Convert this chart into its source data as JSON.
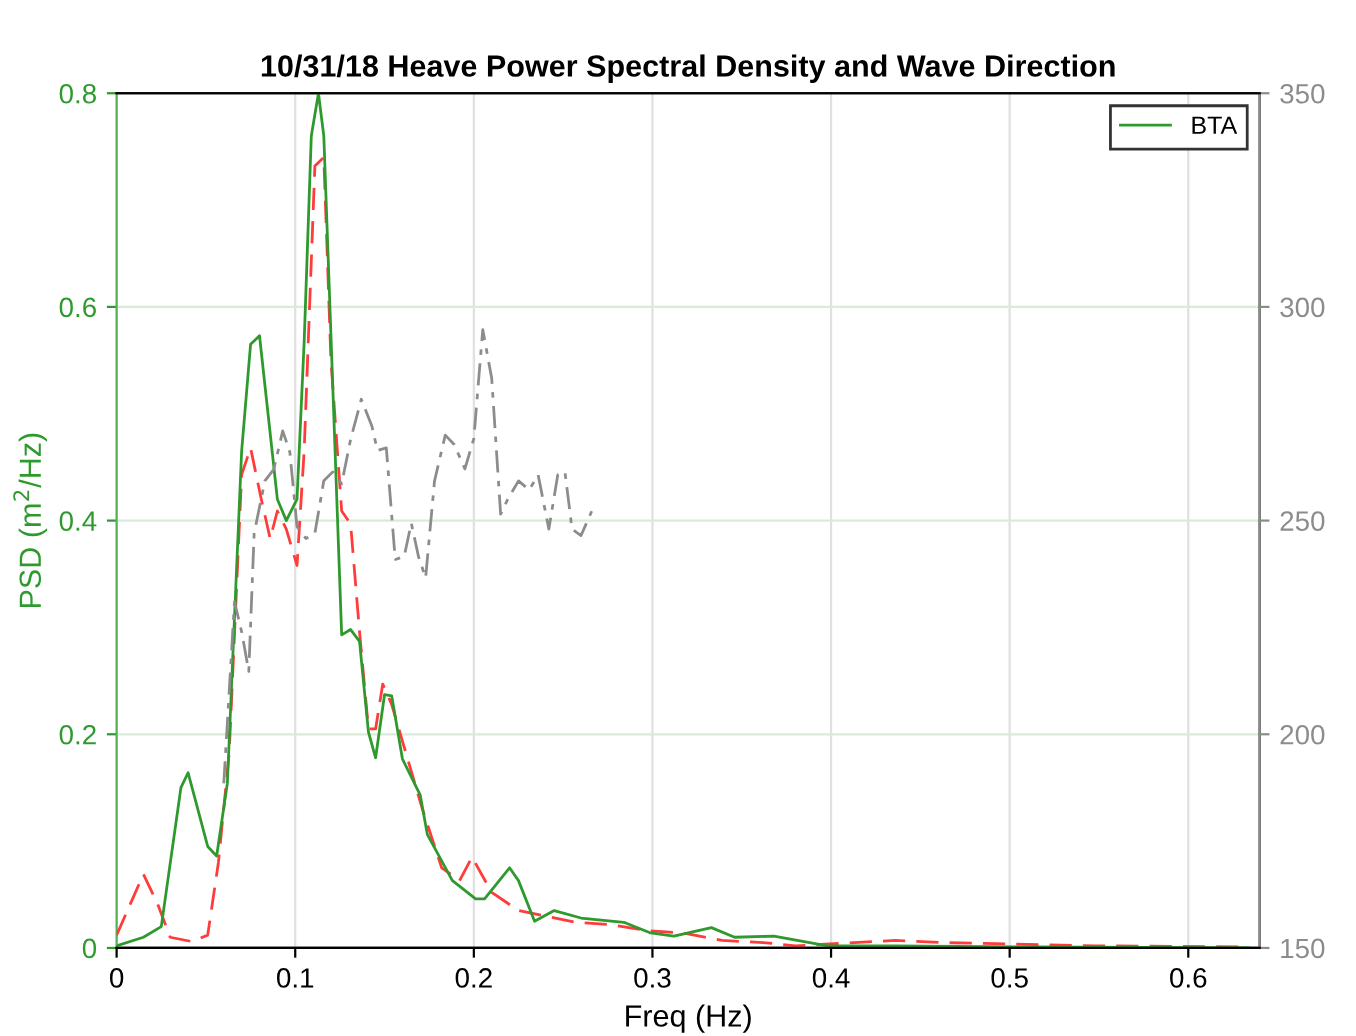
{
  "chart_data": {
    "type": "line",
    "title": "10/31/18 Heave Power Spectral Density and Wave Direction",
    "xlabel": "Freq (Hz)",
    "ylabel": "PSD (m$^{2}$/Hz)",
    "xlim": [
      0,
      0.64
    ],
    "xticks": [
      0,
      0.1,
      0.2,
      0.3,
      0.4,
      0.5,
      0.6
    ],
    "ylim": [
      0,
      0.8
    ],
    "yticks": [
      0,
      0.2,
      0.4,
      0.6,
      0.8
    ],
    "y2lim": [
      150,
      350
    ],
    "y2ticks": [
      150,
      200,
      250,
      300,
      350
    ],
    "grid": true,
    "legend": "top right",
    "series": [
      {
        "color": "#ff3b3b",
        "line_style": "dashed",
        "x": [
          0,
          0.015,
          0.023,
          0.03,
          0.042,
          0.051,
          0.057,
          0.063,
          0.07,
          0.075,
          0.081,
          0.086,
          0.09,
          0.095,
          0.101,
          0.105,
          0.111,
          0.116,
          0.12,
          0.126,
          0.131,
          0.136,
          0.141,
          0.145,
          0.149,
          0.154,
          0.161,
          0.171,
          0.182,
          0.192,
          0.199,
          0.21,
          0.225,
          0.257,
          0.276,
          0.298,
          0.317,
          0.339,
          0.362,
          0.38,
          0.436,
          0.462,
          0.492,
          0.548,
          0.634
        ],
        "values": [
          0.012,
          0.069,
          0.041,
          0.01,
          0.006,
          0.012,
          0.08,
          0.182,
          0.443,
          0.468,
          0.42,
          0.383,
          0.409,
          0.392,
          0.358,
          0.465,
          0.732,
          0.74,
          0.55,
          0.409,
          0.397,
          0.296,
          0.205,
          0.205,
          0.247,
          0.228,
          0.188,
          0.131,
          0.075,
          0.063,
          0.085,
          0.052,
          0.035,
          0.024,
          0.022,
          0.016,
          0.014,
          0.007,
          0.005,
          0.002,
          0.007,
          0.005,
          0.004,
          0.002,
          0.001
        ]
      },
      {
        "name": "BTA",
        "color": "#2e9a2e",
        "line_style": "solid",
        "x": [
          0,
          0.015,
          0.025,
          0.036,
          0.04,
          0.051,
          0.056,
          0.062,
          0.07,
          0.075,
          0.08,
          0.09,
          0.095,
          0.101,
          0.105,
          0.109,
          0.113,
          0.116,
          0.126,
          0.131,
          0.136,
          0.141,
          0.145,
          0.15,
          0.154,
          0.16,
          0.17,
          0.174,
          0.188,
          0.201,
          0.206,
          0.22,
          0.225,
          0.234,
          0.245,
          0.26,
          0.284,
          0.299,
          0.312,
          0.333,
          0.346,
          0.368,
          0.398,
          0.436,
          0.511,
          0.634
        ],
        "values": [
          0.002,
          0.01,
          0.02,
          0.15,
          0.164,
          0.095,
          0.086,
          0.154,
          0.465,
          0.565,
          0.573,
          0.42,
          0.4,
          0.42,
          0.567,
          0.76,
          0.8,
          0.76,
          0.293,
          0.298,
          0.287,
          0.202,
          0.178,
          0.237,
          0.236,
          0.177,
          0.143,
          0.106,
          0.063,
          0.046,
          0.046,
          0.075,
          0.063,
          0.025,
          0.035,
          0.028,
          0.024,
          0.014,
          0.011,
          0.019,
          0.01,
          0.011,
          0.002,
          0.002,
          0.001,
          0.0
        ]
      },
      {
        "axis": "y2",
        "color": "#8c8c8c",
        "line_style": "dashdot",
        "x": [
          0.06,
          0.066,
          0.07,
          0.074,
          0.077,
          0.083,
          0.088,
          0.093,
          0.097,
          0.101,
          0.106,
          0.111,
          0.116,
          0.121,
          0.126,
          0.131,
          0.137,
          0.143,
          0.146,
          0.151,
          0.156,
          0.161,
          0.165,
          0.169,
          0.173,
          0.178,
          0.184,
          0.189,
          0.195,
          0.2,
          0.205,
          0.21,
          0.215,
          0.219,
          0.225,
          0.231,
          0.236,
          0.242,
          0.247,
          0.251,
          0.255,
          0.26,
          0.266
        ],
        "values": [
          188.5,
          231,
          224,
          214.7,
          247,
          259.3,
          262,
          271,
          266,
          248.6,
          245.8,
          247,
          259.3,
          261.4,
          258.6,
          269,
          278.4,
          272,
          266.4,
          267,
          240.9,
          241.6,
          249.4,
          241.6,
          236.6,
          259.3,
          270,
          267.8,
          262.1,
          269.2,
          294.7,
          283.3,
          251.5,
          255,
          259.3,
          257.2,
          260.7,
          248,
          260.7,
          261.4,
          248,
          246.5,
          252.2
        ]
      }
    ]
  }
}
